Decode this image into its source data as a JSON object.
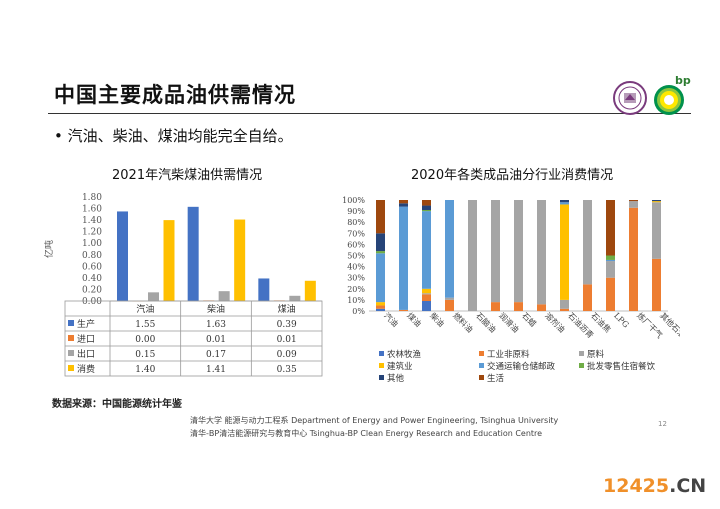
{
  "slide": {
    "title": "中国主要成品油供需情况",
    "bullet": "• 汽油、柴油、煤油均能完全自给。",
    "source": "数据来源：中国能源统计年鉴",
    "footer_line1": "清华大学 能源与动力工程系 Department of Energy and Power Engineering, Tsinghua University",
    "footer_line2": "清华-BP清洁能源研究与教育中心 Tsinghua-BP Clean Energy Research and Education Centre",
    "page_number": "12",
    "bp_logo_text": "bp",
    "watermark": {
      "prefix": "12425",
      "suffix": ".CN"
    }
  },
  "colors": {
    "production": "#4472C4",
    "import": "#ED7D31",
    "export": "#A5A5A5",
    "consumption": "#FFC000",
    "agri": "#4472C4",
    "industry_nonfeed": "#ED7D31",
    "feedstock": "#A5A5A5",
    "construction": "#FFC000",
    "transport": "#5B9BD5",
    "wholesale": "#70AD47",
    "other": "#264478",
    "living": "#9E480E"
  },
  "chart_data": [
    {
      "type": "bar",
      "title": "2021年汽柴煤油供需情况",
      "ylabel": "亿吨",
      "categories": [
        "汽油",
        "柴油",
        "煤油"
      ],
      "ylim": [
        0,
        1.8
      ],
      "yticks": [
        "1.80",
        "1.60",
        "1.40",
        "1.20",
        "1.00",
        "0.80",
        "0.60",
        "0.40",
        "0.20",
        "0.00"
      ],
      "series": [
        {
          "name": "生产",
          "values": [
            1.55,
            1.63,
            0.39
          ],
          "labels": [
            "1.55",
            "1.63",
            "0.39"
          ]
        },
        {
          "name": "进口",
          "values": [
            0.0,
            0.01,
            0.01
          ],
          "labels": [
            "0.00",
            "0.01",
            "0.01"
          ]
        },
        {
          "name": "出口",
          "values": [
            0.15,
            0.17,
            0.09
          ],
          "labels": [
            "0.15",
            "0.17",
            "0.09"
          ]
        },
        {
          "name": "消费",
          "values": [
            1.4,
            1.41,
            0.35
          ],
          "labels": [
            "1.40",
            "1.41",
            "0.35"
          ]
        }
      ],
      "grid": false,
      "legend": "data-table"
    },
    {
      "type": "bar",
      "stacked": true,
      "title": "2020年各类成品油分行业消费情况",
      "categories": [
        "汽油",
        "煤油",
        "柴油",
        "燃料油",
        "石脑油",
        "润滑油",
        "石蜡",
        "溶剂油",
        "石油沥青",
        "石油焦",
        "LPG",
        "炼厂干气",
        "其他石油制品"
      ],
      "ylim": [
        0,
        100
      ],
      "yticks": [
        "100%",
        "90%",
        "80%",
        "70%",
        "60%",
        "50%",
        "40%",
        "30%",
        "20%",
        "10%",
        "0%"
      ],
      "series": [
        {
          "name": "农林牧渔",
          "values": [
            2,
            0,
            9,
            0,
            0,
            0,
            0,
            0,
            0,
            0,
            0,
            0,
            0
          ]
        },
        {
          "name": "工业非原料",
          "values": [
            3,
            1,
            6,
            10,
            0,
            8,
            8,
            6,
            2,
            24,
            30,
            93,
            47
          ]
        },
        {
          "name": "原料",
          "values": [
            0,
            0,
            1,
            2,
            100,
            92,
            92,
            94,
            8,
            76,
            15,
            6,
            51
          ]
        },
        {
          "name": "建筑业",
          "values": [
            3,
            0,
            4,
            0,
            0,
            0,
            0,
            0,
            86,
            0,
            0,
            0,
            1
          ]
        },
        {
          "name": "交通运输仓储邮政",
          "values": [
            44,
            93,
            70,
            88,
            0,
            0,
            0,
            0,
            2,
            0,
            1,
            0,
            0
          ]
        },
        {
          "name": "批发零售住宿餐饮",
          "values": [
            2,
            0,
            1,
            0,
            0,
            0,
            0,
            0,
            0,
            0,
            4,
            0,
            0
          ]
        },
        {
          "name": "其他",
          "values": [
            16,
            3,
            4,
            0,
            0,
            0,
            0,
            0,
            2,
            0,
            0,
            0,
            1
          ]
        },
        {
          "name": "生活",
          "values": [
            30,
            3,
            5,
            0,
            0,
            0,
            0,
            0,
            0,
            0,
            50,
            1,
            0
          ]
        }
      ],
      "grid": false,
      "legend": "bottom"
    }
  ]
}
